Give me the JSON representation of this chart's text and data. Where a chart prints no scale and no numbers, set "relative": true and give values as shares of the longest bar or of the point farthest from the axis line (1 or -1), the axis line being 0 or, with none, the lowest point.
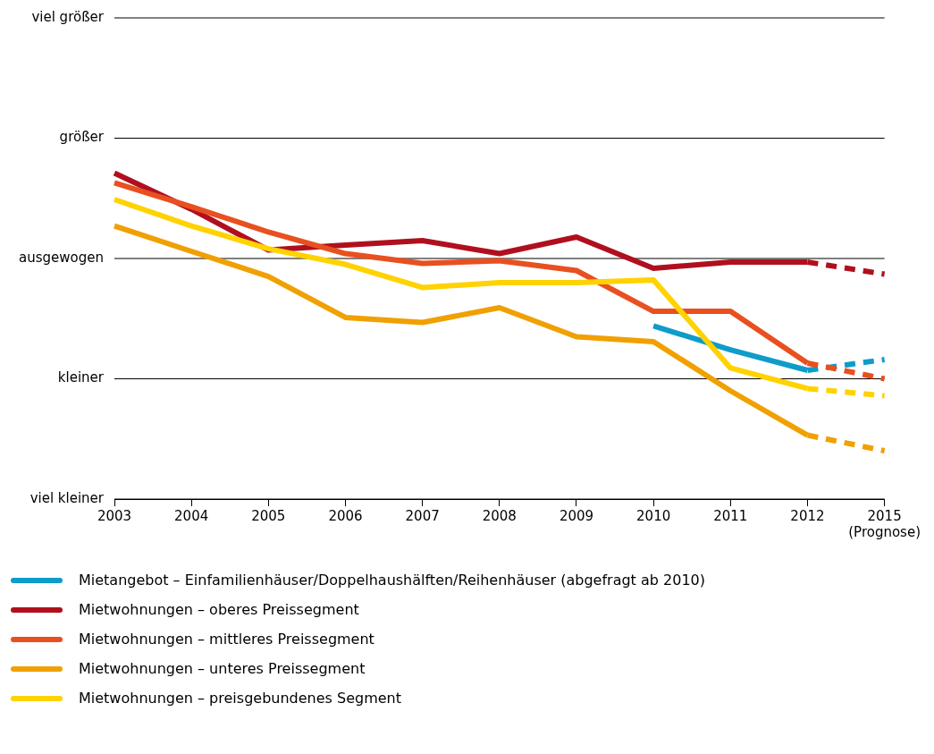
{
  "chart_data": {
    "type": "line",
    "relative": true,
    "categories": [
      "2003",
      "2004",
      "2005",
      "2006",
      "2007",
      "2008",
      "2009",
      "2010",
      "2011",
      "2012",
      "2015\n(Prognose)"
    ],
    "ref_lines": [
      {
        "axis": "y",
        "value": 0,
        "label": "viel kleiner"
      },
      {
        "axis": "y",
        "value": 0.369,
        "label": "kleiner"
      },
      {
        "axis": "y",
        "value": 0.738,
        "label": "ausgewogen"
      },
      {
        "axis": "y",
        "value": 1.107,
        "label": "größer"
      },
      {
        "axis": "y",
        "value": 1.476,
        "label": "viel größer"
      }
    ],
    "legend": "bottom",
    "marker": "none",
    "line_style": "solid",
    "series": [
      {
        "name": "Mietangebot – Einfamilienhäuser/Doppelhaushälften/Reihenhäuser (abgefragt ab 2010)",
        "color": "#0e9cc9",
        "values": [
          null,
          null,
          null,
          null,
          null,
          null,
          null,
          0.531,
          0.458,
          0.395,
          null
        ]
      },
      {
        "name": "Mietwohnungen – oberes Preissegment",
        "color": "#b0101e",
        "values": [
          1,
          0.889,
          0.764,
          0.779,
          0.793,
          0.753,
          0.804,
          0.708,
          0.727,
          0.727,
          null
        ]
      },
      {
        "name": "Mietwohnungen – mittleres Preissegment",
        "color": "#e8501f",
        "values": [
          0.97,
          0.897,
          0.819,
          0.753,
          0.723,
          0.731,
          0.701,
          0.576,
          0.576,
          0.417,
          null
        ]
      },
      {
        "name": "Mietwohnungen – unteres Preissegment",
        "color": "#f0a000",
        "values": [
          0.838,
          0.76,
          0.683,
          0.557,
          0.542,
          0.587,
          0.498,
          0.483,
          0.332,
          0.196,
          null
        ]
      },
      {
        "name": "Mietwohnungen – preisgebundenes Segment",
        "color": "#ffd200",
        "values": [
          0.919,
          0.838,
          0.768,
          0.72,
          0.649,
          0.664,
          0.664,
          0.672,
          0.402,
          0.339,
          null
        ]
      },
      {
        "color": "#0e9cc9",
        "line_style": "dashed",
        "values": [
          null,
          null,
          null,
          null,
          null,
          null,
          null,
          null,
          null,
          0.395,
          0.428
        ]
      },
      {
        "color": "#b0101e",
        "line_style": "dashed",
        "values": [
          null,
          null,
          null,
          null,
          null,
          null,
          null,
          null,
          null,
          0.727,
          0.69
        ]
      },
      {
        "color": "#e8501f",
        "line_style": "dashed",
        "values": [
          null,
          null,
          null,
          null,
          null,
          null,
          null,
          null,
          null,
          0.417,
          0.369
        ]
      },
      {
        "color": "#f0a000",
        "line_style": "dashed",
        "values": [
          null,
          null,
          null,
          null,
          null,
          null,
          null,
          null,
          null,
          0.196,
          0.148
        ]
      },
      {
        "color": "#ffd200",
        "line_style": "dashed",
        "values": [
          null,
          null,
          null,
          null,
          null,
          null,
          null,
          null,
          null,
          0.339,
          0.317
        ]
      }
    ]
  }
}
